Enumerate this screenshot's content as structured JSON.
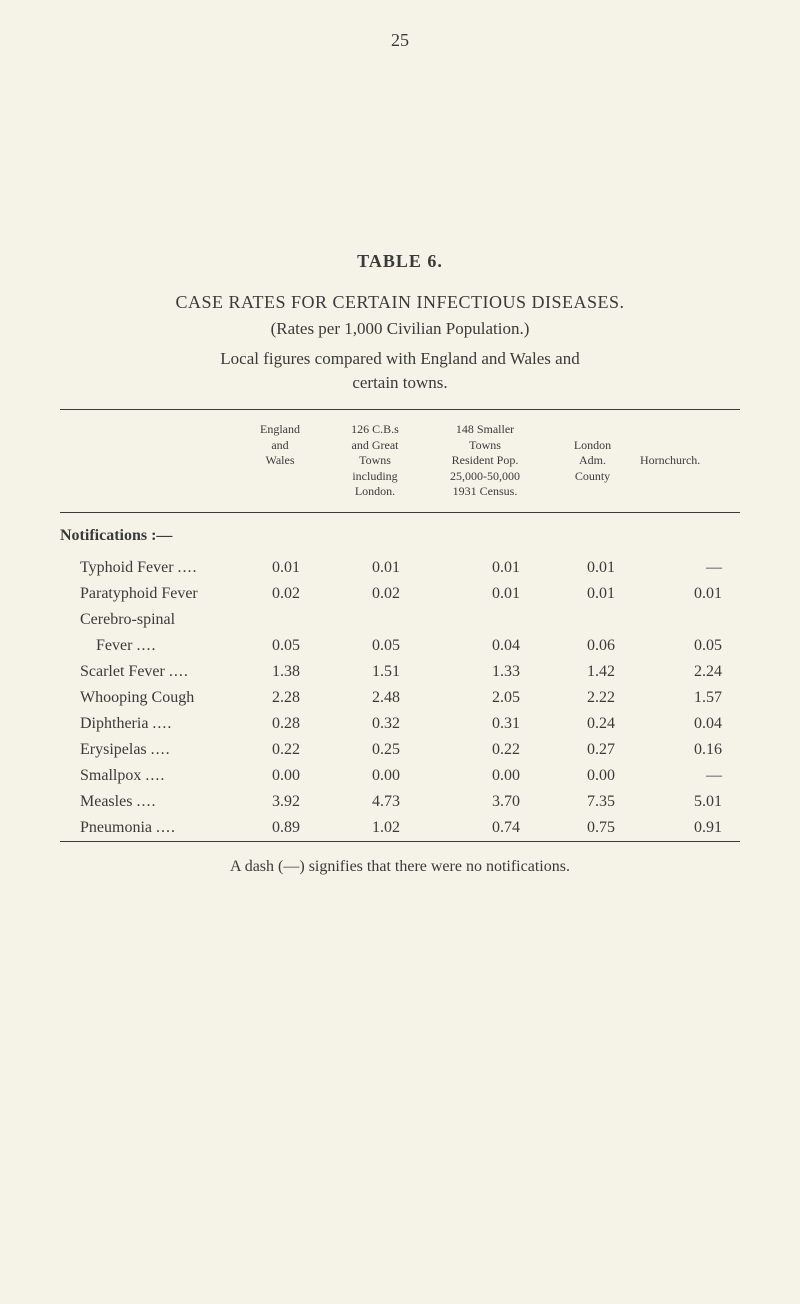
{
  "page_number": "25",
  "table_label": "TABLE 6.",
  "main_title": "CASE RATES FOR CERTAIN INFECTIOUS DISEASES.",
  "subtitle": "(Rates per 1,000 Civilian Population.)",
  "description_line1": "Local figures compared with England and Wales and",
  "description_line2": "certain towns.",
  "headers": {
    "england": {
      "line1": "England",
      "line2": "and",
      "line3": "Wales"
    },
    "cbs": {
      "line1": "126 C.B.s",
      "line2": "and Great",
      "line3": "Towns",
      "line4": "including",
      "line5": "London."
    },
    "smaller": {
      "line1": "148 Smaller",
      "line2": "Towns",
      "line3": "Resident Pop.",
      "line4": "25,000-50,000",
      "line5": "1931 Census."
    },
    "london": {
      "line1": "London",
      "line2": "Adm.",
      "line3": "County"
    },
    "hornchurch": "Hornchurch."
  },
  "section_heading": "Notifications :—",
  "rows": [
    {
      "label": "Typhoid Fever",
      "dots": "....",
      "england": "0.01",
      "cbs": "0.01",
      "smaller": "0.01",
      "london": "0.01",
      "hornchurch": "—"
    },
    {
      "label": "Paratyphoid Fever",
      "dots": "",
      "england": "0.02",
      "cbs": "0.02",
      "smaller": "0.01",
      "london": "0.01",
      "hornchurch": "0.01"
    },
    {
      "label": "Cerebro-spinal",
      "dots": "",
      "england": "",
      "cbs": "",
      "smaller": "",
      "london": "",
      "hornchurch": ""
    },
    {
      "label": "    Fever",
      "dots": "....",
      "england": "0.05",
      "cbs": "0.05",
      "smaller": "0.04",
      "london": "0.06",
      "hornchurch": "0.05"
    },
    {
      "label": "Scarlet Fever",
      "dots": "....",
      "england": "1.38",
      "cbs": "1.51",
      "smaller": "1.33",
      "london": "1.42",
      "hornchurch": "2.24"
    },
    {
      "label": "Whooping Cough",
      "dots": "",
      "england": "2.28",
      "cbs": "2.48",
      "smaller": "2.05",
      "london": "2.22",
      "hornchurch": "1.57"
    },
    {
      "label": "Diphtheria",
      "dots": "....",
      "england": "0.28",
      "cbs": "0.32",
      "smaller": "0.31",
      "london": "0.24",
      "hornchurch": "0.04"
    },
    {
      "label": "Erysipelas",
      "dots": "....",
      "england": "0.22",
      "cbs": "0.25",
      "smaller": "0.22",
      "london": "0.27",
      "hornchurch": "0.16"
    },
    {
      "label": "Smallpox",
      "dots": "....",
      "england": "0.00",
      "cbs": "0.00",
      "smaller": "0.00",
      "london": "0.00",
      "hornchurch": "—"
    },
    {
      "label": "Measles",
      "dots": "....",
      "england": "3.92",
      "cbs": "4.73",
      "smaller": "3.70",
      "london": "7.35",
      "hornchurch": "5.01"
    },
    {
      "label": "Pneumonia",
      "dots": "....",
      "england": "0.89",
      "cbs": "1.02",
      "smaller": "0.74",
      "london": "0.75",
      "hornchurch": "0.91"
    }
  ],
  "footnote": "A dash (—) signifies that there were no notifications.",
  "colors": {
    "background": "#f5f2e8",
    "text": "#3a3a38",
    "border": "#3a3a38"
  },
  "typography": {
    "page_number_fontsize": 18,
    "title_fontsize": 18,
    "body_fontsize": 16,
    "header_fontsize": 12
  }
}
